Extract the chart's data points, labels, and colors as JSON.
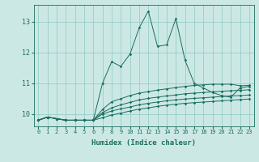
{
  "xlabel": "Humidex (Indice chaleur)",
  "xlim": [
    -0.5,
    23.5
  ],
  "ylim": [
    9.6,
    13.55
  ],
  "yticks": [
    10,
    11,
    12,
    13
  ],
  "xticks": [
    0,
    1,
    2,
    3,
    4,
    5,
    6,
    7,
    8,
    9,
    10,
    11,
    12,
    13,
    14,
    15,
    16,
    17,
    18,
    19,
    20,
    21,
    22,
    23
  ],
  "bg_color": "#cce8e5",
  "grid_color": "#8ec8c3",
  "line_color": "#1a6e60",
  "series": [
    [
      9.8,
      9.9,
      9.85,
      9.8,
      9.8,
      9.8,
      9.8,
      11.0,
      11.7,
      11.55,
      11.95,
      12.8,
      13.35,
      12.2,
      12.25,
      13.1,
      11.75,
      11.0,
      10.85,
      10.7,
      10.6,
      10.55,
      10.85,
      10.9
    ],
    [
      9.8,
      9.9,
      9.85,
      9.8,
      9.8,
      9.8,
      9.8,
      10.15,
      10.4,
      10.5,
      10.6,
      10.68,
      10.73,
      10.78,
      10.82,
      10.86,
      10.9,
      10.93,
      10.95,
      10.97,
      10.97,
      10.97,
      10.92,
      10.93
    ],
    [
      9.8,
      9.9,
      9.85,
      9.8,
      9.8,
      9.8,
      9.8,
      10.05,
      10.2,
      10.3,
      10.38,
      10.46,
      10.51,
      10.55,
      10.59,
      10.62,
      10.66,
      10.68,
      10.7,
      10.72,
      10.74,
      10.76,
      10.77,
      10.79
    ],
    [
      9.8,
      9.9,
      9.85,
      9.8,
      9.8,
      9.8,
      9.8,
      10.0,
      10.1,
      10.17,
      10.23,
      10.3,
      10.35,
      10.39,
      10.43,
      10.46,
      10.49,
      10.51,
      10.53,
      10.55,
      10.57,
      10.59,
      10.6,
      10.62
    ],
    [
      9.8,
      9.9,
      9.85,
      9.8,
      9.8,
      9.8,
      9.8,
      9.88,
      9.97,
      10.03,
      10.1,
      10.16,
      10.2,
      10.25,
      10.29,
      10.32,
      10.35,
      10.37,
      10.39,
      10.41,
      10.43,
      10.45,
      10.47,
      10.49
    ]
  ]
}
